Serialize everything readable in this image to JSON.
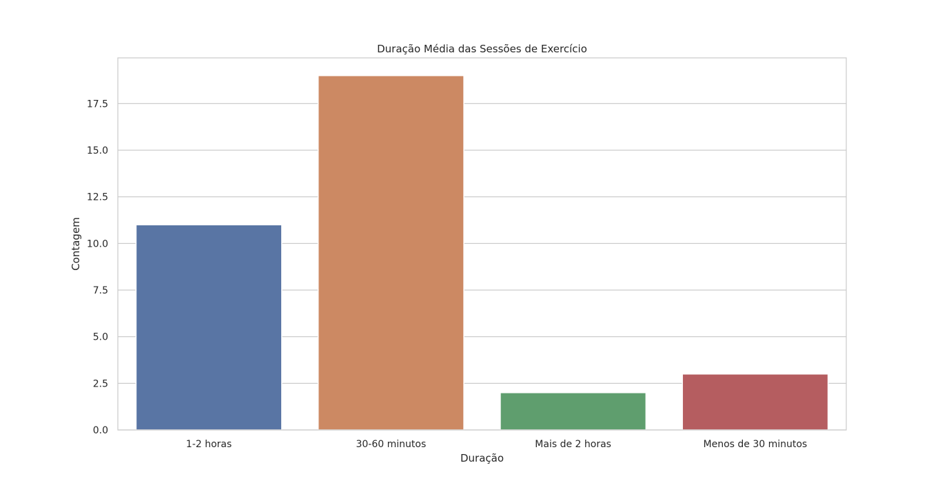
{
  "chart_data": {
    "type": "bar",
    "title": "Duração Média das Sessões de Exercício",
    "xlabel": "Duração",
    "ylabel": "Contagem",
    "categories": [
      "1-2 horas",
      "30-60 minutos",
      "Mais de 2 horas",
      "Menos de 30 minutos"
    ],
    "values": [
      11,
      19,
      2,
      3
    ],
    "colors": [
      "#5975a4",
      "#cc8963",
      "#5f9e6e",
      "#b55d60"
    ],
    "ylim": [
      0,
      19.95
    ],
    "yticks": [
      0.0,
      2.5,
      5.0,
      7.5,
      10.0,
      12.5,
      15.0,
      17.5
    ],
    "ytick_labels": [
      "0.0",
      "2.5",
      "5.0",
      "7.5",
      "10.0",
      "12.5",
      "15.0",
      "17.5"
    ],
    "grid": true,
    "grid_axis": "y"
  }
}
